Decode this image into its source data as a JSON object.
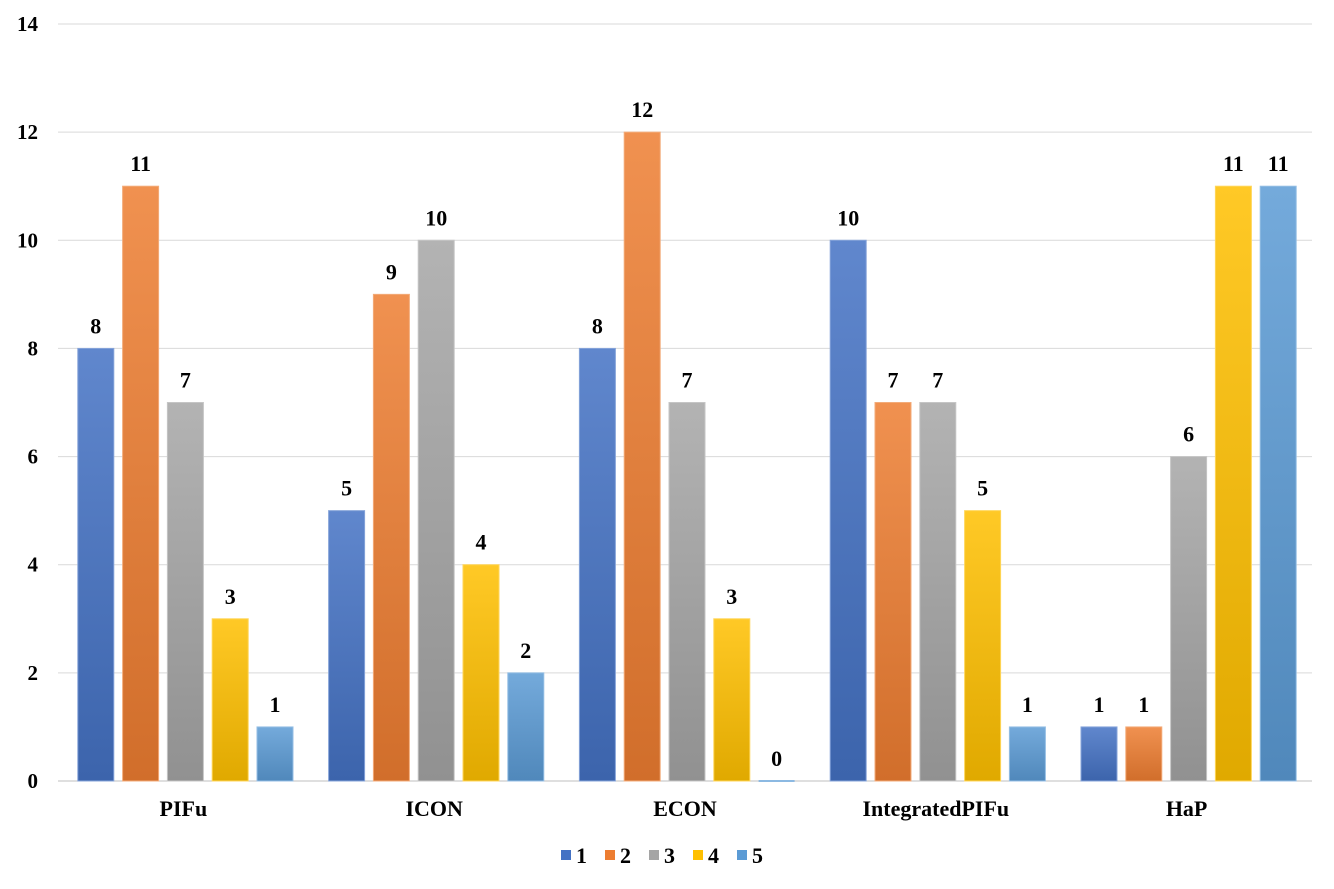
{
  "chart_data": {
    "type": "bar",
    "title": "",
    "xlabel": "",
    "ylabel": "",
    "categories": [
      "PIFu",
      "ICON",
      "ECON",
      "IntegratedPIFu",
      "HaP"
    ],
    "series": [
      {
        "name": "1",
        "values": [
          8,
          5,
          8,
          10,
          1
        ],
        "color": "#4472c4"
      },
      {
        "name": "2",
        "values": [
          11,
          9,
          12,
          7,
          1
        ],
        "color": "#ed7d31"
      },
      {
        "name": "3",
        "values": [
          7,
          10,
          7,
          7,
          6
        ],
        "color": "#a5a5a5"
      },
      {
        "name": "4",
        "values": [
          3,
          4,
          3,
          5,
          11
        ],
        "color": "#ffc000"
      },
      {
        "name": "5",
        "values": [
          1,
          2,
          0,
          1,
          11
        ],
        "color": "#5b9bd5"
      }
    ],
    "ylim": [
      0,
      14
    ],
    "yticks": [
      0,
      2,
      4,
      6,
      8,
      10,
      12,
      14
    ],
    "grid": true,
    "legend_position": "bottom"
  }
}
